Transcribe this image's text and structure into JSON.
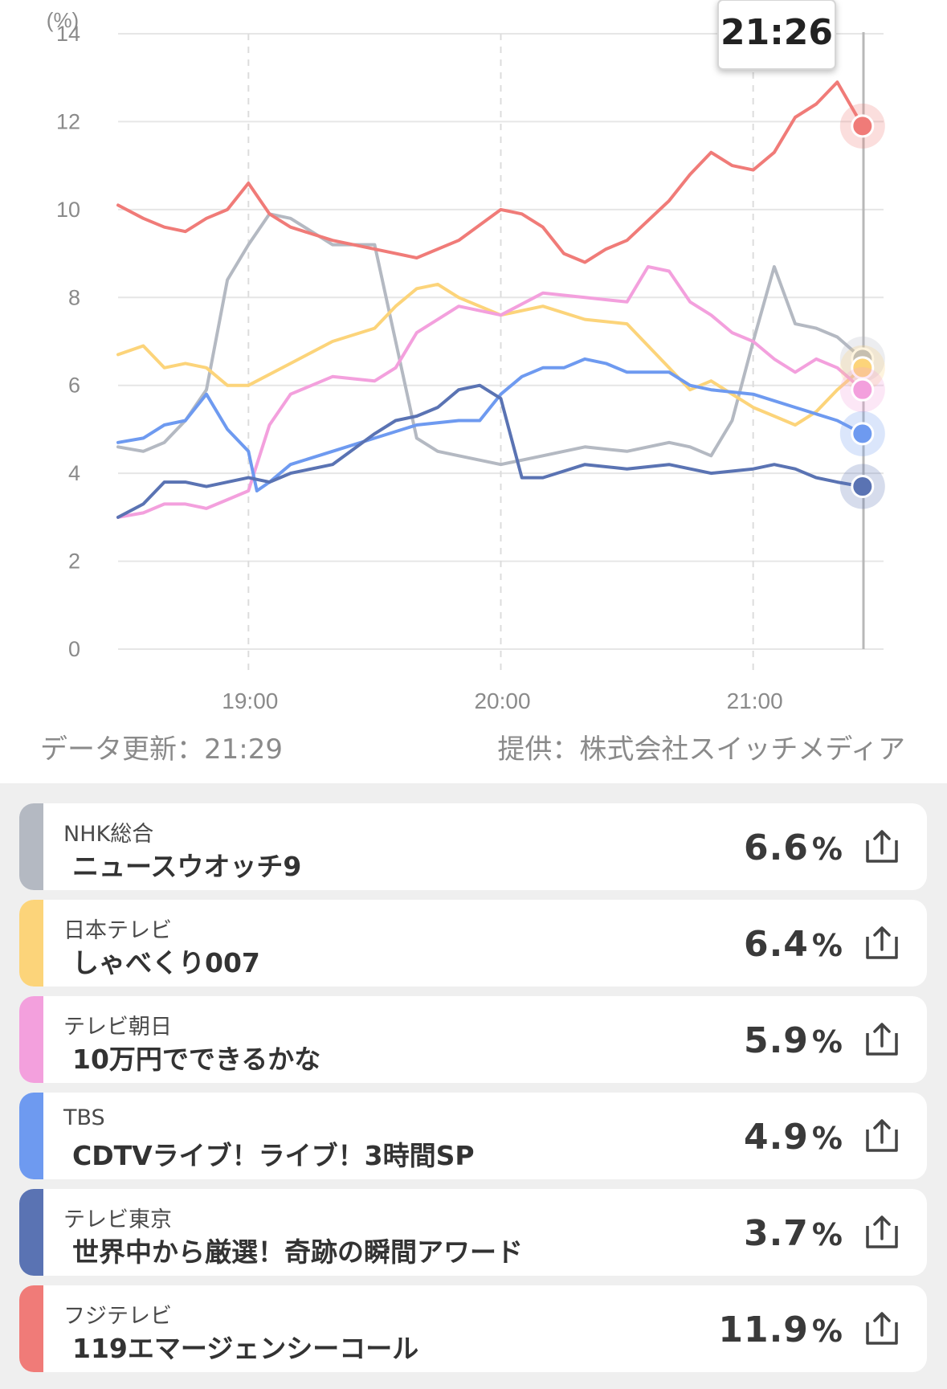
{
  "chart_data": {
    "type": "line",
    "unit_label": "(%)",
    "y_ticks": [
      "14",
      "12",
      "10",
      "8",
      "6",
      "4",
      "2",
      "0"
    ],
    "ylim": [
      0,
      14
    ],
    "x_ticks": [
      "19:00",
      "20:00",
      "21:00"
    ],
    "xlim": [
      "18:29",
      "21:31"
    ],
    "cursor_time": "21:26",
    "grid": true,
    "series": [
      {
        "name": "NHK総合",
        "color": "#b4b9c2",
        "x": [
          "18:29",
          "18:35",
          "18:40",
          "18:45",
          "18:50",
          "18:55",
          "19:00",
          "19:05",
          "19:10",
          "19:20",
          "19:30",
          "19:35",
          "19:40",
          "19:45",
          "19:50",
          "20:00",
          "20:10",
          "20:20",
          "20:30",
          "20:40",
          "20:45",
          "20:50",
          "20:55",
          "21:00",
          "21:05",
          "21:10",
          "21:15",
          "21:20",
          "21:26"
        ],
        "values": [
          4.6,
          4.5,
          4.7,
          5.2,
          5.9,
          8.4,
          9.2,
          9.9,
          9.8,
          9.2,
          9.2,
          7.0,
          4.8,
          4.5,
          4.4,
          4.2,
          4.4,
          4.6,
          4.5,
          4.7,
          4.6,
          4.4,
          5.2,
          7.0,
          8.7,
          7.4,
          7.3,
          7.1,
          6.6
        ]
      },
      {
        "name": "日本テレビ",
        "color": "#fcd47a",
        "x": [
          "18:29",
          "18:35",
          "18:40",
          "18:45",
          "18:50",
          "18:55",
          "19:00",
          "19:10",
          "19:20",
          "19:30",
          "19:35",
          "19:40",
          "19:45",
          "19:50",
          "20:00",
          "20:10",
          "20:20",
          "20:30",
          "20:40",
          "20:45",
          "20:50",
          "20:55",
          "21:00",
          "21:05",
          "21:10",
          "21:15",
          "21:20",
          "21:26"
        ],
        "values": [
          6.7,
          6.9,
          6.4,
          6.5,
          6.4,
          6.0,
          6.0,
          6.5,
          7.0,
          7.3,
          7.8,
          8.2,
          8.3,
          8.0,
          7.6,
          7.8,
          7.5,
          7.4,
          6.4,
          5.9,
          6.1,
          5.8,
          5.5,
          5.3,
          5.1,
          5.4,
          5.9,
          6.4
        ]
      },
      {
        "name": "テレビ朝日",
        "color": "#f3a0dd",
        "x": [
          "18:29",
          "18:35",
          "18:40",
          "18:45",
          "18:50",
          "18:55",
          "19:00",
          "19:05",
          "19:10",
          "19:20",
          "19:30",
          "19:35",
          "19:40",
          "19:50",
          "20:00",
          "20:10",
          "20:20",
          "20:30",
          "20:35",
          "20:40",
          "20:45",
          "20:50",
          "20:55",
          "21:00",
          "21:05",
          "21:10",
          "21:15",
          "21:20",
          "21:26"
        ],
        "values": [
          3.0,
          3.1,
          3.3,
          3.3,
          3.2,
          3.4,
          3.6,
          5.1,
          5.8,
          6.2,
          6.1,
          6.4,
          7.2,
          7.8,
          7.6,
          8.1,
          8.0,
          7.9,
          8.7,
          8.6,
          7.9,
          7.6,
          7.2,
          7.0,
          6.6,
          6.3,
          6.6,
          6.4,
          5.9
        ]
      },
      {
        "name": "TBS",
        "color": "#6e9af0",
        "x": [
          "18:29",
          "18:35",
          "18:40",
          "18:45",
          "18:50",
          "18:55",
          "19:00",
          "19:02",
          "19:05",
          "19:10",
          "19:20",
          "19:30",
          "19:40",
          "19:50",
          "19:55",
          "20:00",
          "20:05",
          "20:10",
          "20:15",
          "20:20",
          "20:25",
          "20:30",
          "20:40",
          "20:45",
          "20:50",
          "21:00",
          "21:10",
          "21:20",
          "21:26"
        ],
        "values": [
          4.7,
          4.8,
          5.1,
          5.2,
          5.8,
          5.0,
          4.5,
          3.6,
          3.8,
          4.2,
          4.5,
          4.8,
          5.1,
          5.2,
          5.2,
          5.8,
          6.2,
          6.4,
          6.4,
          6.6,
          6.5,
          6.3,
          6.3,
          6.0,
          5.9,
          5.8,
          5.5,
          5.2,
          4.9
        ]
      },
      {
        "name": "テレビ東京",
        "color": "#5a73b3",
        "x": [
          "18:29",
          "18:35",
          "18:40",
          "18:45",
          "18:50",
          "18:55",
          "19:00",
          "19:05",
          "19:10",
          "19:20",
          "19:30",
          "19:35",
          "19:40",
          "19:45",
          "19:50",
          "19:55",
          "20:00",
          "20:05",
          "20:10",
          "20:20",
          "20:30",
          "20:40",
          "20:50",
          "21:00",
          "21:05",
          "21:10",
          "21:15",
          "21:20",
          "21:26"
        ],
        "values": [
          3.0,
          3.3,
          3.8,
          3.8,
          3.7,
          3.8,
          3.9,
          3.8,
          4.0,
          4.2,
          4.9,
          5.2,
          5.3,
          5.5,
          5.9,
          6.0,
          5.7,
          3.9,
          3.9,
          4.2,
          4.1,
          4.2,
          4.0,
          4.1,
          4.2,
          4.1,
          3.9,
          3.8,
          3.7
        ]
      },
      {
        "name": "フジテレビ",
        "color": "#f07b78",
        "x": [
          "18:29",
          "18:35",
          "18:40",
          "18:45",
          "18:50",
          "18:55",
          "19:00",
          "19:05",
          "19:10",
          "19:20",
          "19:30",
          "19:40",
          "19:50",
          "20:00",
          "20:05",
          "20:10",
          "20:15",
          "20:20",
          "20:25",
          "20:30",
          "20:40",
          "20:45",
          "20:50",
          "20:55",
          "21:00",
          "21:05",
          "21:10",
          "21:15",
          "21:20",
          "21:26"
        ],
        "values": [
          10.1,
          9.8,
          9.6,
          9.5,
          9.8,
          10.0,
          10.6,
          9.9,
          9.6,
          9.3,
          9.1,
          8.9,
          9.3,
          10.0,
          9.9,
          9.6,
          9.0,
          8.8,
          9.1,
          9.3,
          10.2,
          10.8,
          11.3,
          11.0,
          10.9,
          11.3,
          12.1,
          12.4,
          12.9,
          11.9
        ]
      }
    ]
  },
  "update_label": "データ更新：21:29",
  "provider_label": "提供：株式会社スイッチメディア",
  "percent_unit": "%",
  "channels": [
    {
      "network": "NHK総合",
      "program": "ニュースウオッチ9",
      "rating": "6.6",
      "color": "#b4b9c2"
    },
    {
      "network": "日本テレビ",
      "program": "しゃべくり007",
      "rating": "6.4",
      "color": "#fcd47a"
    },
    {
      "network": "テレビ朝日",
      "program": "10万円でできるかな",
      "rating": "5.9",
      "color": "#f3a0dd"
    },
    {
      "network": "TBS",
      "program": "CDTVライブ！ライブ！3時間SP",
      "rating": "4.9",
      "color": "#6e9af0"
    },
    {
      "network": "テレビ東京",
      "program": "世界中から厳選！奇跡の瞬間アワード",
      "rating": "3.7",
      "color": "#5a73b3"
    },
    {
      "network": "フジテレビ",
      "program": "119エマージェンシーコール",
      "rating": "11.9",
      "color": "#f07b78"
    }
  ],
  "icons": {
    "share": "share-icon"
  }
}
